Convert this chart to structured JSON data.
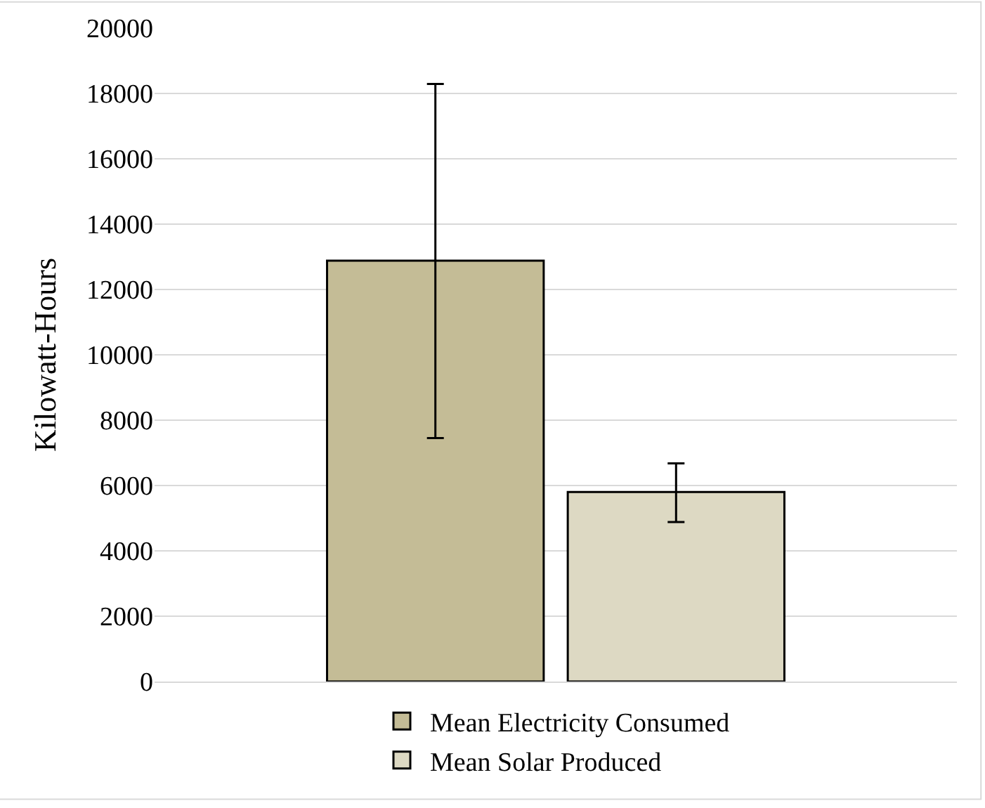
{
  "chart_data": {
    "type": "bar",
    "ylabel": "Kilowatt-Hours",
    "categories": [
      null
    ],
    "series": [
      {
        "name": "Mean Electricity Consumed",
        "color": "#c4bc96",
        "values": [
          12880
        ],
        "errors": [
          [
            7450,
            18290
          ]
        ]
      },
      {
        "name": "Mean Solar Produced",
        "color": "#ddd9c3",
        "values": [
          5800
        ],
        "errors": [
          [
            4880,
            6680
          ]
        ]
      }
    ],
    "ylim": [
      0,
      20000
    ],
    "yticks": [
      0,
      2000,
      4000,
      6000,
      8000,
      10000,
      12000,
      14000,
      16000,
      18000,
      20000
    ],
    "grid": "y",
    "legend": "bottom",
    "tick_labels": "y"
  }
}
